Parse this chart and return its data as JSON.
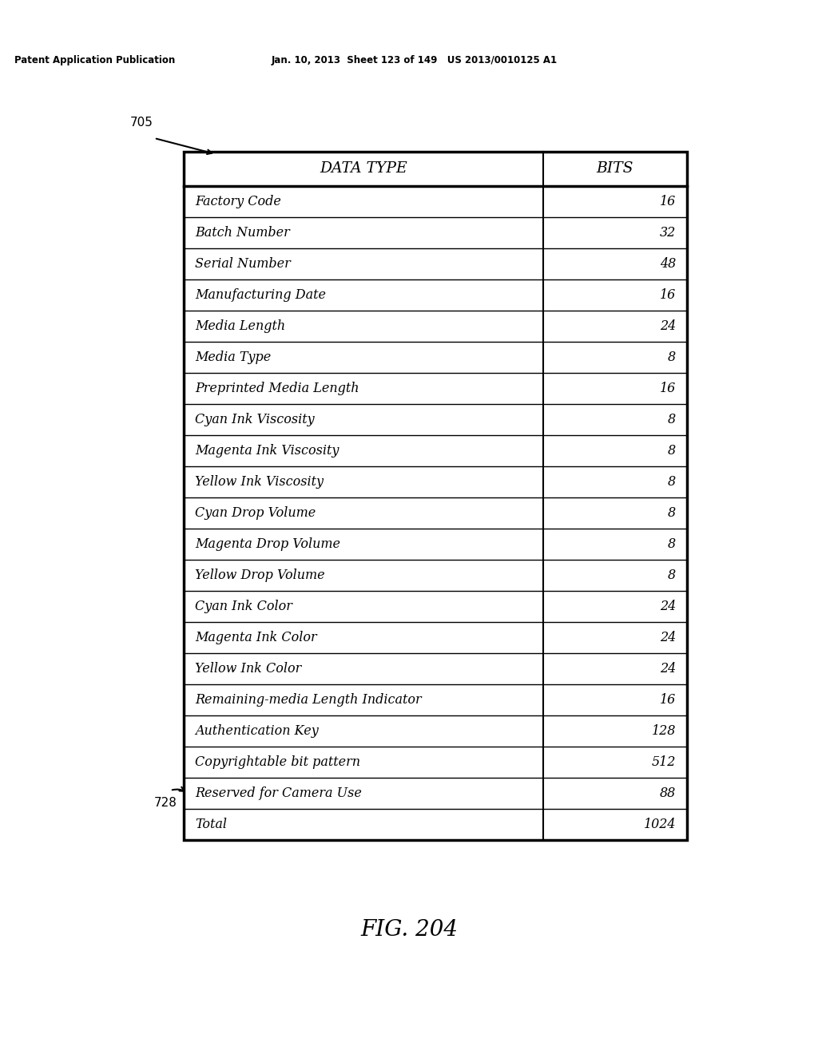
{
  "header_row": [
    "DATA TYPE",
    "BITS"
  ],
  "rows": [
    [
      "Factory Code",
      "16"
    ],
    [
      "Batch Number",
      "32"
    ],
    [
      "Serial Number",
      "48"
    ],
    [
      "Manufacturing Date",
      "16"
    ],
    [
      "Media Length",
      "24"
    ],
    [
      "Media Type",
      "8"
    ],
    [
      "Preprinted Media Length",
      "16"
    ],
    [
      "Cyan Ink Viscosity",
      "8"
    ],
    [
      "Magenta Ink Viscosity",
      "8"
    ],
    [
      "Yellow Ink Viscosity",
      "8"
    ],
    [
      "Cyan Drop Volume",
      "8"
    ],
    [
      "Magenta Drop Volume",
      "8"
    ],
    [
      "Yellow Drop Volume",
      "8"
    ],
    [
      "Cyan Ink Color",
      "24"
    ],
    [
      "Magenta Ink Color",
      "24"
    ],
    [
      "Yellow Ink Color",
      "24"
    ],
    [
      "Remaining-media Length Indicator",
      "16"
    ],
    [
      "Authentication Key",
      "128"
    ],
    [
      "Copyrightable bit pattern",
      "512"
    ],
    [
      "Reserved for Camera Use",
      "88"
    ],
    [
      "Total",
      "1024"
    ]
  ],
  "label_705": "705",
  "label_728": "728",
  "fig_label": "FIG. 204",
  "patent_header": "Patent Application Publication",
  "patent_date": "Jan. 10, 2013  Sheet 123 of 149   US 2013/0010125 A1",
  "bg_color": "#ffffff",
  "table_line_color": "#000000",
  "text_color": "#000000"
}
